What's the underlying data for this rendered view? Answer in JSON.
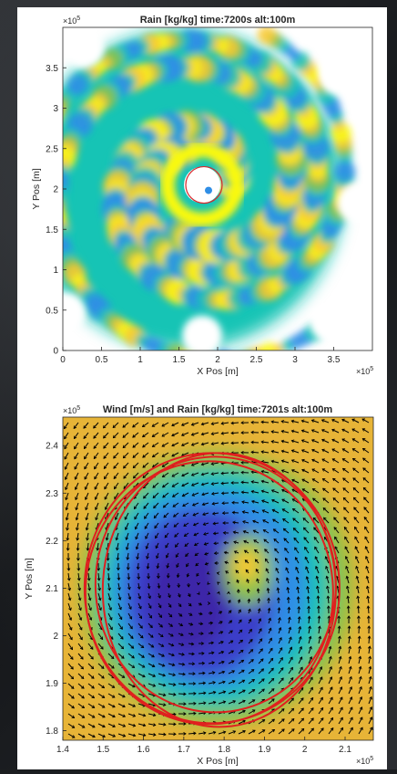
{
  "chart_data": [
    {
      "type": "heatmap",
      "title": "Rain [kg/kg] time:7200s alt:100m",
      "xlabel": "X Pos [m]",
      "ylabel": "Y Pos [m]",
      "xlim": [
        0,
        400000
      ],
      "ylim": [
        0,
        400000
      ],
      "x_ticks": [
        "0",
        "0.5",
        "1",
        "1.5",
        "2",
        "2.5",
        "3",
        "3.5"
      ],
      "y_ticks": [
        "0",
        "0.5",
        "1",
        "1.5",
        "2",
        "2.5",
        "3",
        "3.5"
      ],
      "x_exponent_label": "×10",
      "x_exponent_power": "5",
      "y_exponent_label": "×10",
      "y_exponent_power": "5",
      "field": "rain mixing ratio, filled contours (spiral rainbands around eye)",
      "eye_center": [
        180000,
        205000
      ],
      "colormap": [
        "#3e26a8",
        "#2f8ee6",
        "#19c4b5",
        "#8ac24a",
        "#f9c932",
        "#f9f90e"
      ],
      "overlay": "red contour rings around eye",
      "grid": false
    },
    {
      "type": "heatmap",
      "title": "Wind [m/s] and Rain [kg/kg] time:7201s alt:100m",
      "xlabel": "X Pos [m]",
      "ylabel": "Y Pos [m]",
      "xlim": [
        140000,
        217000
      ],
      "ylim": [
        178000,
        246000
      ],
      "x_ticks": [
        "1.4",
        "1.5",
        "1.6",
        "1.7",
        "1.8",
        "1.9",
        "2",
        "2.1"
      ],
      "y_ticks": [
        "1.8",
        "1.9",
        "2",
        "2.1",
        "2.2",
        "2.3",
        "2.4"
      ],
      "x_exponent_label": "×10",
      "x_exponent_power": "5",
      "y_exponent_label": "×10",
      "y_exponent_power": "5",
      "field": "wind speed shaded (low in eye) with black wind vectors (cyclonic rotation)",
      "vortex_center": [
        177000,
        210000
      ],
      "colormap": [
        "#3e26a8",
        "#2f8ee6",
        "#19c4b5",
        "#8ac24a",
        "#f9c932",
        "#f9f90e"
      ],
      "overlay": "red circular rings, radius about 33000 m",
      "grid": false
    }
  ]
}
